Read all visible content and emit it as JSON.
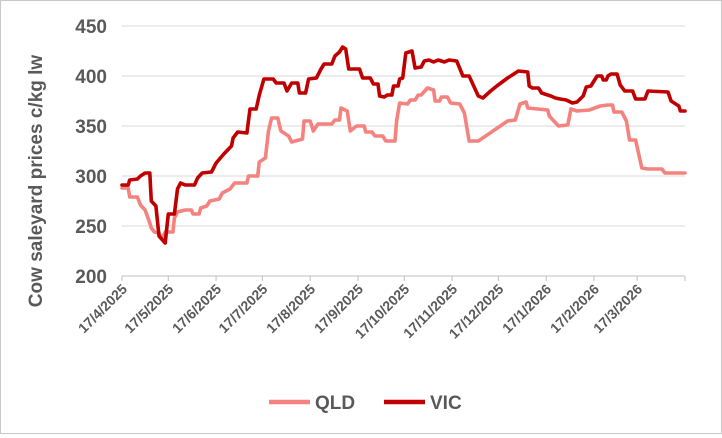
{
  "chart_data": {
    "type": "line",
    "ylabel": "Cow saleyard prices c/kg lw",
    "xlabel": "",
    "title": "",
    "ylim": [
      200,
      450
    ],
    "yticks": [
      200,
      250,
      300,
      350,
      400,
      450
    ],
    "xlim": [
      "2025-04-17",
      "2026-04-17"
    ],
    "xtick_labels": [
      "17/4/2025",
      "17/5/2025",
      "17/6/2025",
      "17/7/2025",
      "17/8/2025",
      "17/9/2025",
      "17/10/2025",
      "17/11/2025",
      "17/12/2025",
      "17/1/2026",
      "17/2/2026",
      "17/3/2026"
    ],
    "grid": "horizontal",
    "legend": "bottom-center",
    "series": [
      {
        "name": "QLD",
        "color": "#f4827f",
        "points": [
          [
            "2025-04-17",
            288
          ],
          [
            "2025-04-21",
            288
          ],
          [
            "2025-04-22",
            279
          ],
          [
            "2025-04-27",
            279
          ],
          [
            "2025-04-29",
            271
          ],
          [
            "2025-05-02",
            266
          ],
          [
            "2025-05-05",
            253
          ],
          [
            "2025-05-06",
            248
          ],
          [
            "2025-05-08",
            244
          ],
          [
            "2025-05-11",
            243
          ],
          [
            "2025-05-12",
            240
          ],
          [
            "2025-05-14",
            240
          ],
          [
            "2025-05-15",
            244
          ],
          [
            "2025-05-20",
            244
          ],
          [
            "2025-05-21",
            258
          ],
          [
            "2025-05-23",
            264
          ],
          [
            "2025-05-28",
            266
          ],
          [
            "2025-06-01",
            266
          ],
          [
            "2025-06-02",
            262
          ],
          [
            "2025-06-06",
            262
          ],
          [
            "2025-06-07",
            268
          ],
          [
            "2025-06-11",
            270
          ],
          [
            "2025-06-13",
            275
          ],
          [
            "2025-06-19",
            277
          ],
          [
            "2025-06-21",
            283
          ],
          [
            "2025-06-26",
            287
          ],
          [
            "2025-06-29",
            293
          ],
          [
            "2025-07-07",
            293
          ],
          [
            "2025-07-08",
            300
          ],
          [
            "2025-07-14",
            300
          ],
          [
            "2025-07-15",
            314
          ],
          [
            "2025-07-19",
            318
          ],
          [
            "2025-07-21",
            345
          ],
          [
            "2025-07-23",
            358
          ],
          [
            "2025-07-27",
            358
          ],
          [
            "2025-07-29",
            345
          ],
          [
            "2025-08-03",
            340
          ],
          [
            "2025-08-05",
            334
          ],
          [
            "2025-08-12",
            337
          ],
          [
            "2025-08-13",
            355
          ],
          [
            "2025-08-17",
            355
          ],
          [
            "2025-08-19",
            345
          ],
          [
            "2025-08-22",
            352
          ],
          [
            "2025-08-31",
            352
          ],
          [
            "2025-09-02",
            356
          ],
          [
            "2025-09-05",
            356
          ],
          [
            "2025-09-06",
            368
          ],
          [
            "2025-09-10",
            365
          ],
          [
            "2025-09-12",
            345
          ],
          [
            "2025-09-16",
            350
          ],
          [
            "2025-09-21",
            350
          ],
          [
            "2025-09-22",
            344
          ],
          [
            "2025-09-26",
            344
          ],
          [
            "2025-09-28",
            340
          ],
          [
            "2025-10-03",
            340
          ],
          [
            "2025-10-05",
            335
          ],
          [
            "2025-10-11",
            335
          ],
          [
            "2025-10-12",
            355
          ],
          [
            "2025-10-14",
            373
          ],
          [
            "2025-10-19",
            372
          ],
          [
            "2025-10-21",
            376
          ],
          [
            "2025-10-24",
            376
          ],
          [
            "2025-10-26",
            381
          ],
          [
            "2025-10-28",
            381
          ],
          [
            "2025-11-01",
            388
          ],
          [
            "2025-11-05",
            386
          ],
          [
            "2025-11-06",
            375
          ],
          [
            "2025-11-09",
            375
          ],
          [
            "2025-11-10",
            379
          ],
          [
            "2025-11-14",
            379
          ],
          [
            "2025-11-16",
            373
          ],
          [
            "2025-11-22",
            372
          ],
          [
            "2025-11-25",
            363
          ],
          [
            "2025-11-28",
            335
          ],
          [
            "2025-12-04",
            335
          ],
          [
            "2025-12-23",
            355
          ],
          [
            "2025-12-28",
            356
          ],
          [
            "2025-12-31",
            372
          ],
          [
            "2026-01-04",
            374
          ],
          [
            "2026-01-05",
            368
          ],
          [
            "2026-01-18",
            366
          ],
          [
            "2026-01-19",
            360
          ],
          [
            "2026-01-25",
            350
          ],
          [
            "2026-01-31",
            351
          ],
          [
            "2026-02-02",
            367
          ],
          [
            "2026-02-06",
            365
          ],
          [
            "2026-02-14",
            366
          ],
          [
            "2026-02-21",
            370
          ],
          [
            "2026-02-26",
            371
          ],
          [
            "2026-03-01",
            371
          ],
          [
            "2026-03-02",
            364
          ],
          [
            "2026-03-07",
            364
          ],
          [
            "2026-03-10",
            355
          ],
          [
            "2026-03-12",
            336
          ],
          [
            "2026-03-16",
            336
          ],
          [
            "2026-03-20",
            308
          ],
          [
            "2026-03-24",
            307
          ],
          [
            "2026-04-02",
            307
          ],
          [
            "2026-04-04",
            303
          ],
          [
            "2026-04-17",
            303
          ]
        ]
      },
      {
        "name": "VIC",
        "color": "#c00000",
        "points": [
          [
            "2025-04-17",
            291
          ],
          [
            "2025-04-21",
            291
          ],
          [
            "2025-04-22",
            296
          ],
          [
            "2025-04-27",
            297
          ],
          [
            "2025-04-29",
            300
          ],
          [
            "2025-05-02",
            303
          ],
          [
            "2025-05-05",
            303
          ],
          [
            "2025-05-06",
            275
          ],
          [
            "2025-05-09",
            270
          ],
          [
            "2025-05-11",
            240
          ],
          [
            "2025-05-15",
            233
          ],
          [
            "2025-05-17",
            262
          ],
          [
            "2025-05-21",
            262
          ],
          [
            "2025-05-23",
            287
          ],
          [
            "2025-05-25",
            293
          ],
          [
            "2025-05-28",
            291
          ],
          [
            "2025-06-03",
            291
          ],
          [
            "2025-06-05",
            298
          ],
          [
            "2025-06-08",
            303
          ],
          [
            "2025-06-14",
            304
          ],
          [
            "2025-06-17",
            313
          ],
          [
            "2025-06-22",
            322
          ],
          [
            "2025-06-27",
            330
          ],
          [
            "2025-06-28",
            338
          ],
          [
            "2025-07-01",
            344
          ],
          [
            "2025-07-07",
            343
          ],
          [
            "2025-07-09",
            367
          ],
          [
            "2025-07-13",
            367
          ],
          [
            "2025-07-15",
            381
          ],
          [
            "2025-07-18",
            397
          ],
          [
            "2025-07-24",
            397
          ],
          [
            "2025-07-26",
            393
          ],
          [
            "2025-07-31",
            393
          ],
          [
            "2025-08-02",
            385
          ],
          [
            "2025-08-05",
            393
          ],
          [
            "2025-08-09",
            393
          ],
          [
            "2025-08-10",
            383
          ],
          [
            "2025-08-14",
            383
          ],
          [
            "2025-08-16",
            397
          ],
          [
            "2025-08-21",
            398
          ],
          [
            "2025-08-24",
            407
          ],
          [
            "2025-08-26",
            412
          ],
          [
            "2025-08-31",
            412
          ],
          [
            "2025-09-02",
            420
          ],
          [
            "2025-09-05",
            424
          ],
          [
            "2025-09-07",
            429
          ],
          [
            "2025-09-09",
            427
          ],
          [
            "2025-09-11",
            407
          ],
          [
            "2025-09-18",
            407
          ],
          [
            "2025-09-20",
            398
          ],
          [
            "2025-09-25",
            398
          ],
          [
            "2025-09-27",
            392
          ],
          [
            "2025-09-30",
            392
          ],
          [
            "2025-10-01",
            380
          ],
          [
            "2025-10-04",
            379
          ],
          [
            "2025-10-06",
            381
          ],
          [
            "2025-10-09",
            381
          ],
          [
            "2025-10-10",
            390
          ],
          [
            "2025-10-13",
            390
          ],
          [
            "2025-10-14",
            397
          ],
          [
            "2025-10-16",
            398
          ],
          [
            "2025-10-18",
            423
          ],
          [
            "2025-10-22",
            425
          ],
          [
            "2025-10-24",
            408
          ],
          [
            "2025-10-28",
            409
          ],
          [
            "2025-10-30",
            415
          ],
          [
            "2025-11-02",
            416
          ],
          [
            "2025-11-05",
            414
          ],
          [
            "2025-11-08",
            416
          ],
          [
            "2025-11-12",
            414
          ],
          [
            "2025-11-15",
            416
          ],
          [
            "2025-11-20",
            415
          ],
          [
            "2025-11-24",
            400
          ],
          [
            "2025-11-28",
            400
          ],
          [
            "2025-12-04",
            380
          ],
          [
            "2025-12-07",
            378
          ],
          [
            "2025-12-12",
            385
          ],
          [
            "2025-12-16",
            390
          ],
          [
            "2025-12-23",
            398
          ],
          [
            "2025-12-30",
            405
          ],
          [
            "2026-01-05",
            404
          ],
          [
            "2026-01-06",
            390
          ],
          [
            "2026-01-08",
            388
          ],
          [
            "2026-01-12",
            388
          ],
          [
            "2026-01-14",
            383
          ],
          [
            "2026-01-18",
            381
          ],
          [
            "2026-01-20",
            380
          ],
          [
            "2026-01-23",
            378
          ],
          [
            "2026-01-26",
            377
          ],
          [
            "2026-01-30",
            376
          ],
          [
            "2026-02-03",
            373
          ],
          [
            "2026-02-06",
            374
          ],
          [
            "2026-02-10",
            380
          ],
          [
            "2026-02-12",
            389
          ],
          [
            "2026-02-15",
            390
          ],
          [
            "2026-02-17",
            395
          ],
          [
            "2026-02-19",
            400
          ],
          [
            "2026-02-22",
            400
          ],
          [
            "2026-02-23",
            396
          ],
          [
            "2026-02-25",
            396
          ],
          [
            "2026-02-26",
            400
          ],
          [
            "2026-02-28",
            402
          ],
          [
            "2026-03-04",
            402
          ],
          [
            "2026-03-06",
            391
          ],
          [
            "2026-03-09",
            385
          ],
          [
            "2026-03-14",
            385
          ],
          [
            "2026-03-16",
            377
          ],
          [
            "2026-03-22",
            377
          ],
          [
            "2026-03-24",
            385
          ],
          [
            "2026-04-06",
            384
          ],
          [
            "2026-04-08",
            375
          ],
          [
            "2026-04-13",
            370
          ],
          [
            "2026-04-14",
            365
          ],
          [
            "2026-04-17",
            365
          ]
        ]
      }
    ]
  }
}
